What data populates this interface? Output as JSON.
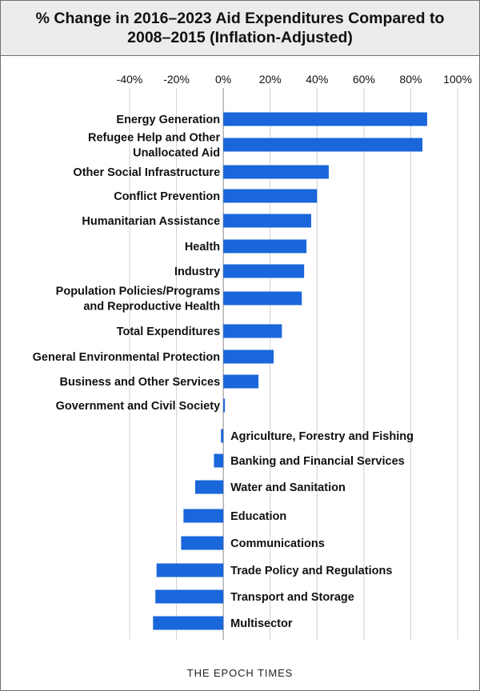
{
  "header": {
    "title": "% Change in 2016–2023 Aid Expenditures Compared to 2008–2015 (Inflation-Adjusted)"
  },
  "footer": {
    "source": "THE EPOCH TIMES"
  },
  "colors": {
    "bar": "#1a66db",
    "grid": "#d0d0d0",
    "title_band": "#ececec"
  },
  "chart_data": {
    "type": "bar",
    "orientation": "horizontal",
    "title": "% Change in 2016–2023 Aid Expenditures Compared to 2008–2015 (Inflation-Adjusted)",
    "xlim": [
      -40,
      100
    ],
    "xticks": [
      -40,
      -20,
      0,
      20,
      40,
      60,
      80,
      100
    ],
    "xtick_labels": [
      "-40%",
      "-20%",
      "0%",
      "20%",
      "40%",
      "60%",
      "80%",
      "100%"
    ],
    "grid": true,
    "categories": [
      "Energy Generation",
      "Refugee Help and Other\nUnallocated Aid",
      "Other Social Infrastructure",
      "Conflict Prevention",
      "Humanitarian Assistance",
      "Health",
      "Industry",
      "Population Policies/Programs\nand Reproductive Health",
      "Total Expenditures",
      "General Environmental Protection",
      "Business and Other Services",
      "Government and Civil Society",
      "Agriculture, Forestry and Fishing",
      "Banking and Financial Services",
      "Water and Sanitation",
      "Education",
      "Communications",
      "Trade Policy and Regulations",
      "Transport and Storage",
      "Multisector"
    ],
    "values": [
      87,
      85,
      45,
      40,
      37.5,
      35.5,
      34.5,
      33.5,
      25,
      21.5,
      15,
      0.5,
      -1,
      -4,
      -12,
      -17,
      -18,
      -28.5,
      -29,
      -30
    ]
  }
}
